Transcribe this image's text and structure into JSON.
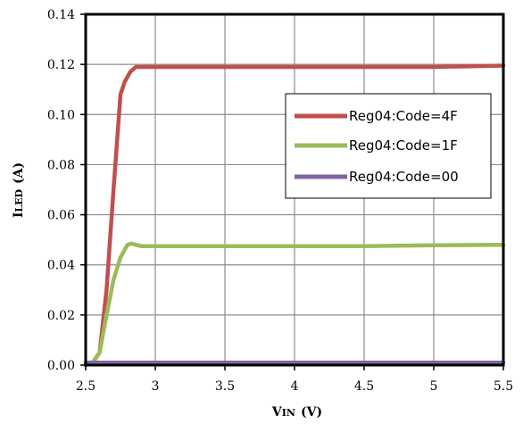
{
  "chart_data": {
    "type": "line",
    "xlabel_main": "V",
    "xlabel_sub": "IN",
    "xlabel_unit": "(V)",
    "ylabel_main": "I",
    "ylabel_sub": "LED",
    "ylabel_unit": "(A)",
    "xlim": [
      2.5,
      5.5
    ],
    "ylim": [
      0,
      0.14
    ],
    "xticks": [
      "2.5",
      "3",
      "3.5",
      "4",
      "4.5",
      "5",
      "5.5"
    ],
    "yticks": [
      "0.00",
      "0.02",
      "0.04",
      "0.06",
      "0.08",
      "0.10",
      "0.12",
      "0.14"
    ],
    "grid": true,
    "legend_position": "right",
    "series": [
      {
        "name": "Reg04:Code=4F",
        "color": "#c0504d",
        "x": [
          2.5,
          2.55,
          2.6,
          2.65,
          2.7,
          2.75,
          2.78,
          2.82,
          2.86,
          2.9,
          3.0,
          3.5,
          4.0,
          4.5,
          5.0,
          5.5
        ],
        "y": [
          0.0,
          0.001,
          0.005,
          0.03,
          0.07,
          0.108,
          0.113,
          0.117,
          0.119,
          0.119,
          0.119,
          0.119,
          0.119,
          0.119,
          0.119,
          0.1195
        ]
      },
      {
        "name": "Reg04:Code=1F",
        "color": "#9bbb59",
        "x": [
          2.5,
          2.55,
          2.6,
          2.65,
          2.7,
          2.75,
          2.8,
          2.83,
          2.86,
          2.9,
          3.0,
          3.5,
          4.0,
          4.5,
          5.0,
          5.5
        ],
        "y": [
          0.0,
          0.001,
          0.005,
          0.02,
          0.034,
          0.043,
          0.048,
          0.0485,
          0.048,
          0.0475,
          0.0475,
          0.0475,
          0.0475,
          0.0475,
          0.0478,
          0.048
        ]
      },
      {
        "name": "Reg04:Code=00",
        "color": "#8064a2",
        "x": [
          2.5,
          3.0,
          3.5,
          4.0,
          4.5,
          5.0,
          5.5
        ],
        "y": [
          0.001,
          0.001,
          0.001,
          0.001,
          0.001,
          0.001,
          0.001
        ]
      }
    ]
  }
}
